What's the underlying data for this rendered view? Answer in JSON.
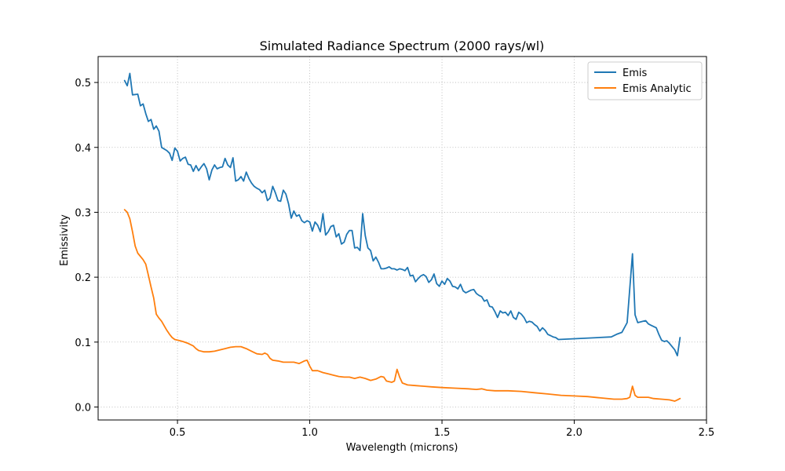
{
  "chart_data": {
    "type": "line",
    "title": "Simulated Radiance Spectrum (2000 rays/wl)",
    "xlabel": "Wavelength (microns)",
    "ylabel": "Emissivity",
    "xlim": [
      0.2,
      2.5
    ],
    "ylim": [
      -0.02,
      0.54
    ],
    "xticks": [
      0.5,
      1.0,
      1.5,
      2.0,
      2.5
    ],
    "xtick_labels": [
      "0.5",
      "1.0",
      "1.5",
      "2.0",
      "2.5"
    ],
    "yticks": [
      0.0,
      0.1,
      0.2,
      0.3,
      0.4,
      0.5
    ],
    "ytick_labels": [
      "0.0",
      "0.1",
      "0.2",
      "0.3",
      "0.4",
      "0.5"
    ],
    "grid": true,
    "legend_position": "top-right",
    "series": [
      {
        "name": "Emis",
        "color": "#1f77b4",
        "points": [
          [
            0.3,
            0.503
          ],
          [
            0.31,
            0.495
          ],
          [
            0.32,
            0.514
          ],
          [
            0.33,
            0.481
          ],
          [
            0.35,
            0.482
          ],
          [
            0.36,
            0.464
          ],
          [
            0.37,
            0.467
          ],
          [
            0.38,
            0.452
          ],
          [
            0.39,
            0.44
          ],
          [
            0.4,
            0.443
          ],
          [
            0.41,
            0.428
          ],
          [
            0.42,
            0.433
          ],
          [
            0.43,
            0.425
          ],
          [
            0.44,
            0.4
          ],
          [
            0.46,
            0.395
          ],
          [
            0.47,
            0.391
          ],
          [
            0.48,
            0.38
          ],
          [
            0.49,
            0.399
          ],
          [
            0.5,
            0.394
          ],
          [
            0.51,
            0.379
          ],
          [
            0.52,
            0.383
          ],
          [
            0.53,
            0.385
          ],
          [
            0.54,
            0.374
          ],
          [
            0.55,
            0.373
          ],
          [
            0.56,
            0.363
          ],
          [
            0.57,
            0.372
          ],
          [
            0.58,
            0.364
          ],
          [
            0.59,
            0.37
          ],
          [
            0.6,
            0.375
          ],
          [
            0.61,
            0.367
          ],
          [
            0.62,
            0.35
          ],
          [
            0.63,
            0.365
          ],
          [
            0.64,
            0.373
          ],
          [
            0.65,
            0.367
          ],
          [
            0.66,
            0.369
          ],
          [
            0.67,
            0.37
          ],
          [
            0.68,
            0.383
          ],
          [
            0.69,
            0.373
          ],
          [
            0.7,
            0.369
          ],
          [
            0.71,
            0.384
          ],
          [
            0.72,
            0.348
          ],
          [
            0.73,
            0.35
          ],
          [
            0.74,
            0.355
          ],
          [
            0.75,
            0.348
          ],
          [
            0.76,
            0.362
          ],
          [
            0.77,
            0.352
          ],
          [
            0.78,
            0.345
          ],
          [
            0.79,
            0.34
          ],
          [
            0.8,
            0.337
          ],
          [
            0.81,
            0.335
          ],
          [
            0.82,
            0.33
          ],
          [
            0.83,
            0.334
          ],
          [
            0.84,
            0.318
          ],
          [
            0.85,
            0.322
          ],
          [
            0.86,
            0.34
          ],
          [
            0.87,
            0.33
          ],
          [
            0.88,
            0.318
          ],
          [
            0.89,
            0.317
          ],
          [
            0.9,
            0.334
          ],
          [
            0.91,
            0.328
          ],
          [
            0.92,
            0.313
          ],
          [
            0.93,
            0.291
          ],
          [
            0.94,
            0.302
          ],
          [
            0.95,
            0.294
          ],
          [
            0.96,
            0.296
          ],
          [
            0.97,
            0.287
          ],
          [
            0.98,
            0.284
          ],
          [
            0.99,
            0.287
          ],
          [
            1.0,
            0.285
          ],
          [
            1.01,
            0.271
          ],
          [
            1.02,
            0.285
          ],
          [
            1.03,
            0.28
          ],
          [
            1.04,
            0.27
          ],
          [
            1.05,
            0.298
          ],
          [
            1.06,
            0.265
          ],
          [
            1.07,
            0.27
          ],
          [
            1.08,
            0.278
          ],
          [
            1.09,
            0.28
          ],
          [
            1.1,
            0.262
          ],
          [
            1.11,
            0.267
          ],
          [
            1.12,
            0.251
          ],
          [
            1.13,
            0.254
          ],
          [
            1.14,
            0.266
          ],
          [
            1.15,
            0.272
          ],
          [
            1.16,
            0.272
          ],
          [
            1.17,
            0.245
          ],
          [
            1.18,
            0.246
          ],
          [
            1.19,
            0.241
          ],
          [
            1.2,
            0.298
          ],
          [
            1.21,
            0.264
          ],
          [
            1.22,
            0.245
          ],
          [
            1.23,
            0.241
          ],
          [
            1.24,
            0.225
          ],
          [
            1.25,
            0.231
          ],
          [
            1.26,
            0.223
          ],
          [
            1.27,
            0.213
          ],
          [
            1.28,
            0.213
          ],
          [
            1.29,
            0.214
          ],
          [
            1.3,
            0.216
          ],
          [
            1.31,
            0.213
          ],
          [
            1.32,
            0.213
          ],
          [
            1.33,
            0.211
          ],
          [
            1.34,
            0.213
          ],
          [
            1.35,
            0.212
          ],
          [
            1.36,
            0.21
          ],
          [
            1.37,
            0.215
          ],
          [
            1.38,
            0.202
          ],
          [
            1.39,
            0.203
          ],
          [
            1.4,
            0.193
          ],
          [
            1.41,
            0.198
          ],
          [
            1.42,
            0.202
          ],
          [
            1.43,
            0.204
          ],
          [
            1.44,
            0.201
          ],
          [
            1.45,
            0.192
          ],
          [
            1.46,
            0.196
          ],
          [
            1.47,
            0.205
          ],
          [
            1.48,
            0.19
          ],
          [
            1.49,
            0.186
          ],
          [
            1.5,
            0.194
          ],
          [
            1.51,
            0.189
          ],
          [
            1.52,
            0.198
          ],
          [
            1.53,
            0.194
          ],
          [
            1.54,
            0.186
          ],
          [
            1.55,
            0.185
          ],
          [
            1.56,
            0.182
          ],
          [
            1.57,
            0.189
          ],
          [
            1.58,
            0.179
          ],
          [
            1.59,
            0.176
          ],
          [
            1.6,
            0.178
          ],
          [
            1.61,
            0.18
          ],
          [
            1.62,
            0.181
          ],
          [
            1.63,
            0.175
          ],
          [
            1.64,
            0.172
          ],
          [
            1.65,
            0.17
          ],
          [
            1.66,
            0.163
          ],
          [
            1.67,
            0.165
          ],
          [
            1.68,
            0.155
          ],
          [
            1.69,
            0.154
          ],
          [
            1.7,
            0.147
          ],
          [
            1.71,
            0.138
          ],
          [
            1.72,
            0.148
          ],
          [
            1.73,
            0.145
          ],
          [
            1.74,
            0.146
          ],
          [
            1.75,
            0.141
          ],
          [
            1.76,
            0.148
          ],
          [
            1.77,
            0.138
          ],
          [
            1.78,
            0.135
          ],
          [
            1.79,
            0.146
          ],
          [
            1.8,
            0.143
          ],
          [
            1.81,
            0.138
          ],
          [
            1.82,
            0.13
          ],
          [
            1.83,
            0.132
          ],
          [
            1.84,
            0.131
          ],
          [
            1.85,
            0.127
          ],
          [
            1.86,
            0.124
          ],
          [
            1.87,
            0.117
          ],
          [
            1.88,
            0.122
          ],
          [
            1.89,
            0.118
          ],
          [
            1.9,
            0.112
          ],
          [
            1.91,
            0.11
          ],
          [
            1.92,
            0.108
          ],
          [
            1.93,
            0.107
          ],
          [
            1.94,
            0.104
          ],
          [
            2.14,
            0.108
          ],
          [
            2.16,
            0.112
          ],
          [
            2.18,
            0.115
          ],
          [
            2.2,
            0.13
          ],
          [
            2.22,
            0.236
          ],
          [
            2.23,
            0.142
          ],
          [
            2.24,
            0.13
          ],
          [
            2.26,
            0.132
          ],
          [
            2.27,
            0.133
          ],
          [
            2.28,
            0.128
          ],
          [
            2.29,
            0.126
          ],
          [
            2.3,
            0.124
          ],
          [
            2.31,
            0.122
          ],
          [
            2.32,
            0.112
          ],
          [
            2.33,
            0.103
          ],
          [
            2.34,
            0.101
          ],
          [
            2.35,
            0.102
          ],
          [
            2.36,
            0.098
          ],
          [
            2.38,
            0.088
          ],
          [
            2.39,
            0.079
          ],
          [
            2.4,
            0.107
          ]
        ]
      },
      {
        "name": "Emis Analytic",
        "color": "#ff7f0e",
        "points": [
          [
            0.3,
            0.304
          ],
          [
            0.31,
            0.3
          ],
          [
            0.32,
            0.29
          ],
          [
            0.33,
            0.27
          ],
          [
            0.34,
            0.248
          ],
          [
            0.35,
            0.237
          ],
          [
            0.37,
            0.227
          ],
          [
            0.38,
            0.22
          ],
          [
            0.39,
            0.203
          ],
          [
            0.4,
            0.185
          ],
          [
            0.41,
            0.168
          ],
          [
            0.42,
            0.143
          ],
          [
            0.43,
            0.137
          ],
          [
            0.44,
            0.132
          ],
          [
            0.45,
            0.125
          ],
          [
            0.46,
            0.118
          ],
          [
            0.47,
            0.112
          ],
          [
            0.48,
            0.107
          ],
          [
            0.49,
            0.104
          ],
          [
            0.5,
            0.103
          ],
          [
            0.52,
            0.101
          ],
          [
            0.54,
            0.098
          ],
          [
            0.56,
            0.094
          ],
          [
            0.57,
            0.09
          ],
          [
            0.58,
            0.087
          ],
          [
            0.6,
            0.085
          ],
          [
            0.62,
            0.085
          ],
          [
            0.64,
            0.086
          ],
          [
            0.66,
            0.088
          ],
          [
            0.68,
            0.09
          ],
          [
            0.7,
            0.092
          ],
          [
            0.72,
            0.093
          ],
          [
            0.74,
            0.093
          ],
          [
            0.76,
            0.09
          ],
          [
            0.78,
            0.086
          ],
          [
            0.8,
            0.082
          ],
          [
            0.82,
            0.081
          ],
          [
            0.83,
            0.083
          ],
          [
            0.84,
            0.081
          ],
          [
            0.85,
            0.075
          ],
          [
            0.86,
            0.072
          ],
          [
            0.88,
            0.071
          ],
          [
            0.9,
            0.069
          ],
          [
            0.92,
            0.069
          ],
          [
            0.94,
            0.069
          ],
          [
            0.96,
            0.067
          ],
          [
            0.98,
            0.071
          ],
          [
            0.99,
            0.072
          ],
          [
            1.0,
            0.063
          ],
          [
            1.01,
            0.056
          ],
          [
            1.03,
            0.056
          ],
          [
            1.05,
            0.053
          ],
          [
            1.07,
            0.051
          ],
          [
            1.09,
            0.049
          ],
          [
            1.11,
            0.047
          ],
          [
            1.13,
            0.046
          ],
          [
            1.15,
            0.046
          ],
          [
            1.17,
            0.044
          ],
          [
            1.19,
            0.046
          ],
          [
            1.21,
            0.044
          ],
          [
            1.23,
            0.041
          ],
          [
            1.25,
            0.043
          ],
          [
            1.27,
            0.047
          ],
          [
            1.28,
            0.046
          ],
          [
            1.29,
            0.04
          ],
          [
            1.31,
            0.038
          ],
          [
            1.32,
            0.04
          ],
          [
            1.33,
            0.058
          ],
          [
            1.34,
            0.046
          ],
          [
            1.35,
            0.037
          ],
          [
            1.37,
            0.034
          ],
          [
            1.4,
            0.033
          ],
          [
            1.43,
            0.032
          ],
          [
            1.46,
            0.031
          ],
          [
            1.5,
            0.03
          ],
          [
            1.55,
            0.029
          ],
          [
            1.6,
            0.028
          ],
          [
            1.63,
            0.027
          ],
          [
            1.65,
            0.028
          ],
          [
            1.67,
            0.026
          ],
          [
            1.7,
            0.025
          ],
          [
            1.75,
            0.025
          ],
          [
            1.8,
            0.024
          ],
          [
            1.85,
            0.022
          ],
          [
            1.9,
            0.02
          ],
          [
            1.95,
            0.018
          ],
          [
            2.0,
            0.017
          ],
          [
            2.05,
            0.016
          ],
          [
            2.1,
            0.014
          ],
          [
            2.15,
            0.012
          ],
          [
            2.18,
            0.012
          ],
          [
            2.2,
            0.013
          ],
          [
            2.21,
            0.015
          ],
          [
            2.22,
            0.032
          ],
          [
            2.23,
            0.018
          ],
          [
            2.24,
            0.015
          ],
          [
            2.26,
            0.015
          ],
          [
            2.28,
            0.015
          ],
          [
            2.3,
            0.013
          ],
          [
            2.33,
            0.012
          ],
          [
            2.36,
            0.011
          ],
          [
            2.38,
            0.009
          ],
          [
            2.39,
            0.011
          ],
          [
            2.4,
            0.013
          ]
        ]
      }
    ]
  }
}
